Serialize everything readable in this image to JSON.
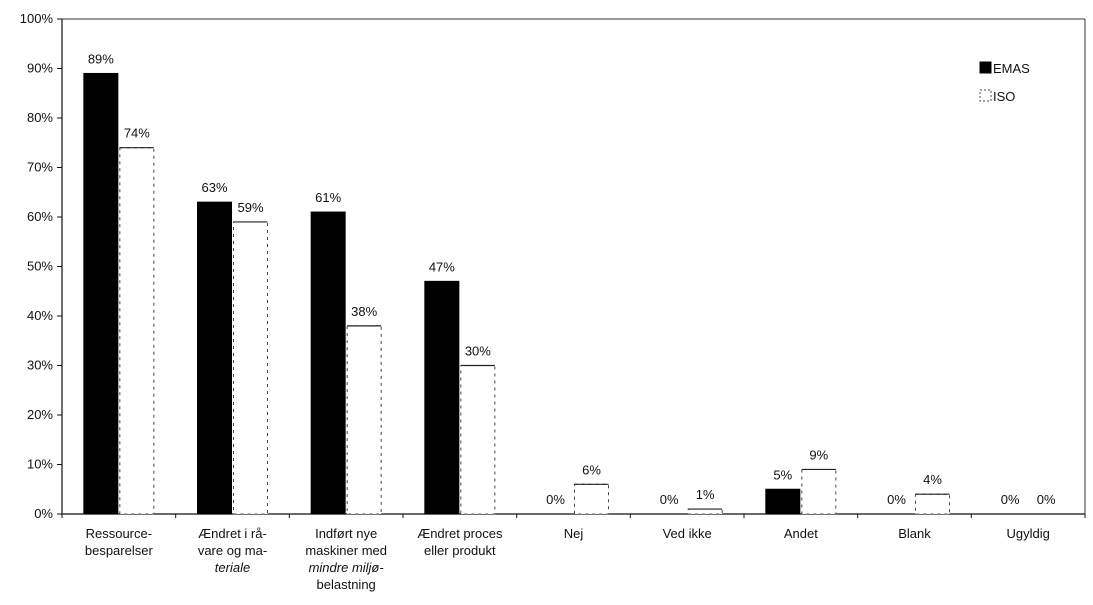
{
  "chart_data": {
    "type": "bar",
    "title": "",
    "xlabel": "",
    "ylabel": "",
    "ylim": [
      0,
      100
    ],
    "y_ticks": [
      "0%",
      "10%",
      "20%",
      "30%",
      "40%",
      "50%",
      "60%",
      "70%",
      "80%",
      "90%",
      "100%"
    ],
    "grid": false,
    "legend_position": "top-right",
    "categories": [
      [
        "Ressource-",
        "besparelser"
      ],
      [
        "Ændret i rå-",
        "vare og ma-",
        "teriale"
      ],
      [
        "Indført nye",
        "maskiner med",
        "mindre miljø-",
        "belastning"
      ],
      [
        "Ændret proces",
        "eller produkt"
      ],
      [
        "Nej"
      ],
      [
        "Ved ikke"
      ],
      [
        "Andet"
      ],
      [
        "Blank"
      ],
      [
        "Ugyldig"
      ]
    ],
    "series": [
      {
        "name": "EMAS",
        "color": "#000000",
        "values": [
          89,
          63,
          61,
          47,
          0,
          0,
          5,
          0,
          0
        ],
        "labels": [
          "89%",
          "63%",
          "61%",
          "47%",
          "0%",
          "0%",
          "5%",
          "0%",
          "0%"
        ]
      },
      {
        "name": "ISO",
        "color": "#ffffff",
        "values": [
          74,
          59,
          38,
          30,
          6,
          1,
          9,
          4,
          0
        ],
        "labels": [
          "74%",
          "59%",
          "38%",
          "30%",
          "6%",
          "1%",
          "9%",
          "4%",
          "0%"
        ]
      }
    ]
  }
}
